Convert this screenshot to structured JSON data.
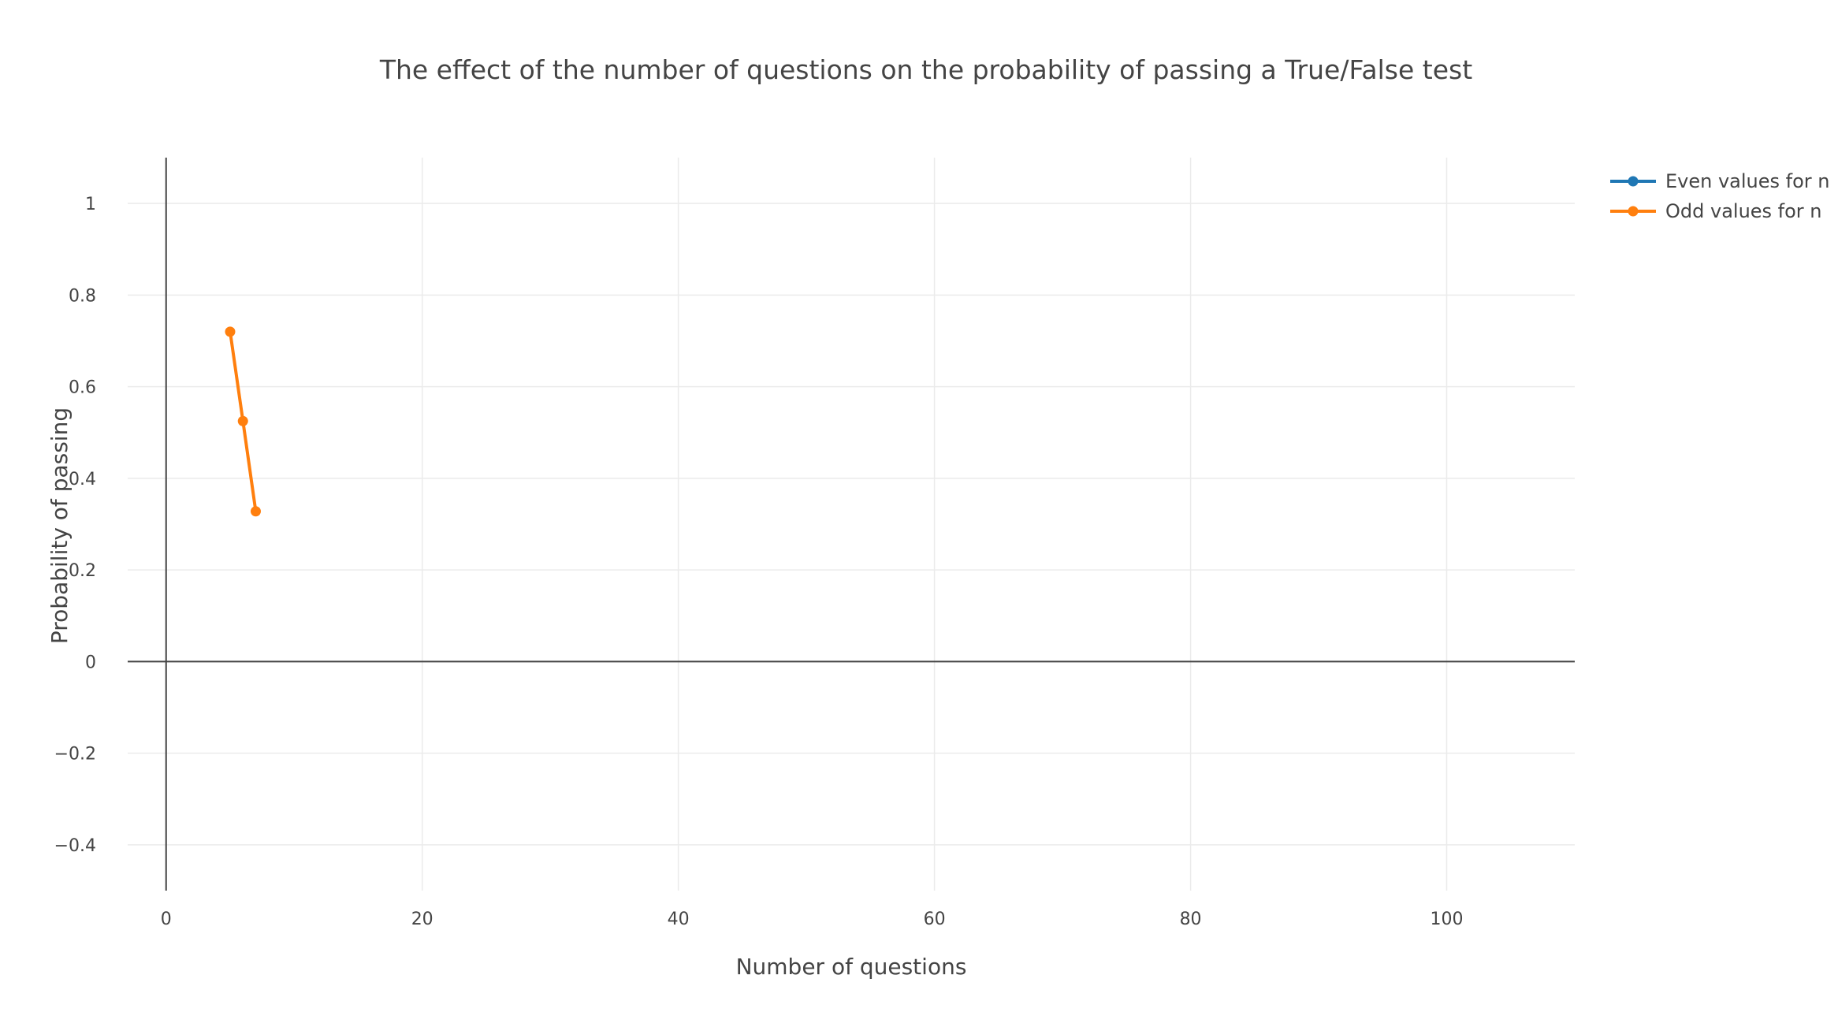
{
  "chart_data": {
    "type": "line",
    "title": "The effect of the number of questions on the probability of passing a True/False test",
    "xlabel": "Number of questions",
    "ylabel": "Probability of passing",
    "xlim": [
      -3,
      110
    ],
    "ylim": [
      -0.5,
      1.1
    ],
    "x_ticks": [
      0,
      20,
      40,
      60,
      80,
      100
    ],
    "x_tick_labels": [
      "0",
      "20",
      "40",
      "60",
      "80",
      "100"
    ],
    "y_ticks": [
      -0.4,
      -0.2,
      0,
      0.2,
      0.4,
      0.6,
      0.8,
      1
    ],
    "y_tick_labels": [
      "−0.4",
      "−0.2",
      "0",
      "0.2",
      "0.4",
      "0.6",
      "0.8",
      "1"
    ],
    "grid": true,
    "legend_position": "top-right",
    "series": [
      {
        "name": "Even values for n",
        "color": "#1f77b4",
        "x": [],
        "y": []
      },
      {
        "name": "Odd values for n",
        "color": "#ff7f0e",
        "x": [
          5,
          6,
          7
        ],
        "y": [
          0.72,
          0.525,
          0.328
        ]
      }
    ]
  }
}
